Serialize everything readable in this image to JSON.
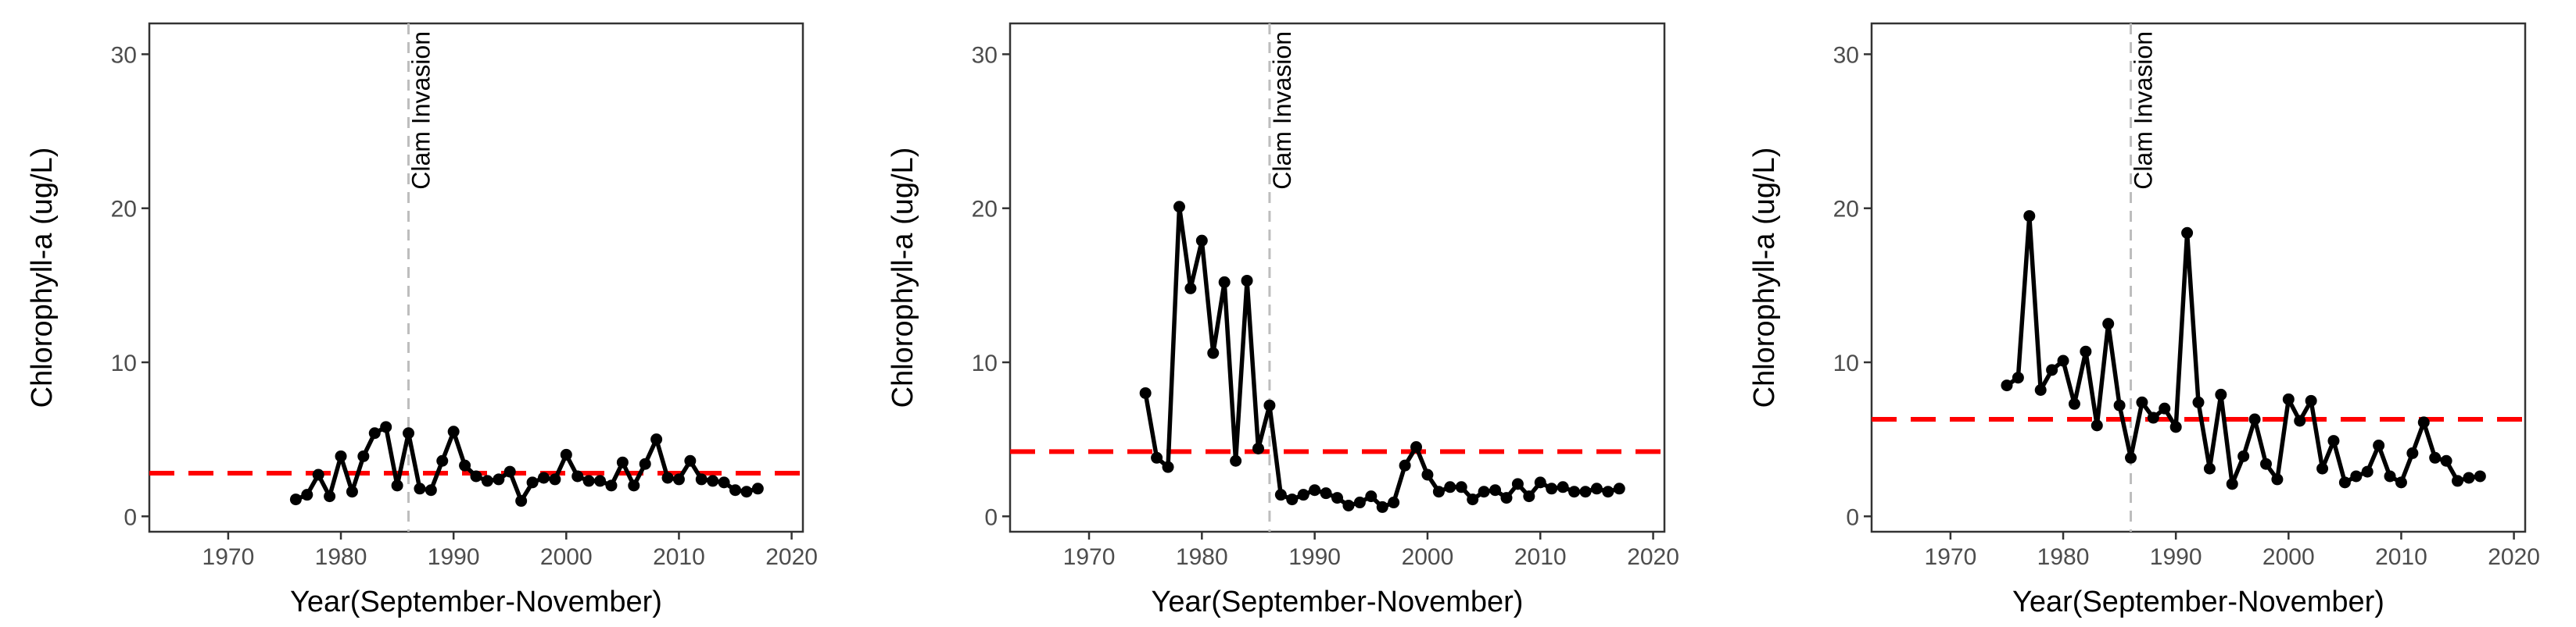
{
  "chart_data": [
    {
      "type": "line",
      "xlabel": "Year(September-November)",
      "ylabel": "Chlorophyll-a (ug/L)",
      "xlim": [
        1963,
        2021
      ],
      "ylim": [
        -1,
        32
      ],
      "xticks": [
        1970,
        1980,
        1990,
        2000,
        2010,
        2020
      ],
      "yticks": [
        0,
        10,
        20,
        30
      ],
      "grid": false,
      "reference_line": {
        "value": 2.8,
        "color": "#ff0000",
        "style": "dashed"
      },
      "vline": {
        "x": 1986,
        "label": "Clam Invasion",
        "color": "#bdbdbd",
        "style": "dashed"
      },
      "series": [
        {
          "color": "#000000",
          "x": [
            1976,
            1977,
            1978,
            1979,
            1980,
            1981,
            1982,
            1983,
            1984,
            1985,
            1986,
            1987,
            1988,
            1989,
            1990,
            1991,
            1992,
            1993,
            1994,
            1995,
            1996,
            1997,
            1998,
            1999,
            2000,
            2001,
            2002,
            2003,
            2004,
            2005,
            2006,
            2007,
            2008,
            2009,
            2010,
            2011,
            2012,
            2013,
            2014,
            2015,
            2016,
            2017
          ],
          "y": [
            1.1,
            1.4,
            2.7,
            1.3,
            3.9,
            1.6,
            3.9,
            5.4,
            5.8,
            2.0,
            5.4,
            1.8,
            1.7,
            3.6,
            5.5,
            3.3,
            2.6,
            2.3,
            2.4,
            2.9,
            1.0,
            2.2,
            2.5,
            2.4,
            4.0,
            2.6,
            2.3,
            2.3,
            2.0,
            3.5,
            2.0,
            3.4,
            5.0,
            2.5,
            2.4,
            3.6,
            2.4,
            2.3,
            2.2,
            1.7,
            1.6,
            1.8
          ]
        }
      ]
    },
    {
      "type": "line",
      "xlabel": "Year(September-November)",
      "ylabel": "Chlorophyll-a (ug/L)",
      "xlim": [
        1963,
        2021
      ],
      "ylim": [
        -1,
        32
      ],
      "xticks": [
        1970,
        1980,
        1990,
        2000,
        2010,
        2020
      ],
      "yticks": [
        0,
        10,
        20,
        30
      ],
      "grid": false,
      "reference_line": {
        "value": 4.2,
        "color": "#ff0000",
        "style": "dashed"
      },
      "vline": {
        "x": 1986,
        "label": "Clam Invasion",
        "color": "#bdbdbd",
        "style": "dashed"
      },
      "series": [
        {
          "color": "#000000",
          "x": [
            1975,
            1976,
            1977,
            1978,
            1979,
            1980,
            1981,
            1982,
            1983,
            1984,
            1985,
            1986,
            1987,
            1988,
            1989,
            1990,
            1991,
            1992,
            1993,
            1994,
            1995,
            1996,
            1997,
            1998,
            1999,
            2000,
            2001,
            2002,
            2003,
            2004,
            2005,
            2006,
            2007,
            2008,
            2009,
            2010,
            2011,
            2012,
            2013,
            2014,
            2015,
            2016,
            2017
          ],
          "y": [
            8.0,
            3.8,
            3.2,
            20.1,
            14.8,
            17.9,
            10.6,
            15.2,
            3.6,
            15.3,
            4.4,
            7.2,
            1.4,
            1.1,
            1.4,
            1.7,
            1.5,
            1.2,
            0.7,
            0.9,
            1.3,
            0.6,
            0.9,
            3.3,
            4.5,
            2.7,
            1.6,
            1.9,
            1.9,
            1.1,
            1.6,
            1.7,
            1.2,
            2.1,
            1.3,
            2.2,
            1.8,
            1.9,
            1.6,
            1.6,
            1.8,
            1.6,
            1.8
          ]
        }
      ]
    },
    {
      "type": "line",
      "xlabel": "Year(September-November)",
      "ylabel": "Chlorophyll-a (ug/L)",
      "xlim": [
        1963,
        2021
      ],
      "ylim": [
        -1,
        32
      ],
      "xticks": [
        1970,
        1980,
        1990,
        2000,
        2010,
        2020
      ],
      "yticks": [
        0,
        10,
        20,
        30
      ],
      "grid": false,
      "reference_line": {
        "value": 6.3,
        "color": "#ff0000",
        "style": "dashed"
      },
      "vline": {
        "x": 1986,
        "label": "Clam Invasion",
        "color": "#bdbdbd",
        "style": "dashed"
      },
      "series": [
        {
          "color": "#000000",
          "x": [
            1975,
            1976,
            1977,
            1978,
            1979,
            1980,
            1981,
            1982,
            1983,
            1984,
            1985,
            1986,
            1987,
            1988,
            1989,
            1990,
            1991,
            1992,
            1993,
            1994,
            1995,
            1996,
            1997,
            1998,
            1999,
            2000,
            2001,
            2002,
            2003,
            2004,
            2005,
            2006,
            2007,
            2008,
            2009,
            2010,
            2011,
            2012,
            2013,
            2014,
            2015,
            2016,
            2017
          ],
          "y": [
            8.5,
            9.0,
            19.5,
            8.2,
            9.5,
            10.1,
            7.3,
            10.7,
            5.9,
            12.5,
            7.2,
            3.8,
            7.4,
            6.4,
            7.0,
            5.8,
            18.4,
            7.4,
            3.1,
            7.9,
            2.1,
            3.9,
            6.3,
            3.4,
            2.4,
            7.6,
            6.2,
            7.5,
            3.1,
            4.9,
            2.2,
            2.6,
            2.9,
            4.6,
            2.6,
            2.2,
            4.1,
            6.1,
            3.8,
            3.6,
            2.3,
            2.5,
            2.6
          ]
        }
      ]
    }
  ]
}
